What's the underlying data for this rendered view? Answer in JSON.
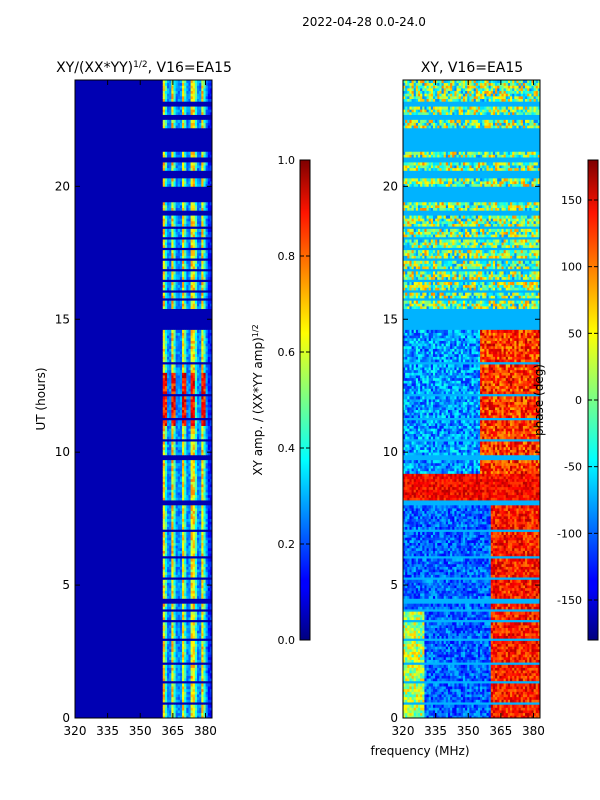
{
  "suptitle": "2022-04-28 0.0-24.0",
  "xlabel": "frequency (MHz)",
  "chart_data": [
    {
      "type": "heatmap",
      "title_main": "XY/(XX*YY)",
      "title_sup": "1/2",
      "title_rest": ", V16=EA15",
      "ylabel": "UT (hours)",
      "xticks": [
        "320",
        "335",
        "350",
        "365",
        "380"
      ],
      "xlim": [
        320,
        383
      ],
      "yticks": [
        "0",
        "5",
        "10",
        "15",
        "20"
      ],
      "ylim": [
        0,
        24
      ],
      "colorbar": {
        "label_main": "XY amp. / (XX*YY amp)",
        "label_sup": "1/2",
        "ticks": [
          "0.0",
          "0.2",
          "0.4",
          "0.6",
          "0.8",
          "1.0"
        ],
        "range": [
          0.0,
          1.0
        ],
        "colormap": "jet"
      },
      "description_values": {
        "low_band_level": 0.03,
        "high_band_channels_mhz": [
          360,
          383
        ],
        "high_band_typical_level": 0.55,
        "peak_level_hours": [
          11,
          13
        ],
        "peak_level": 0.95
      }
    },
    {
      "type": "heatmap",
      "title_main": "XY, V16=EA15",
      "ylabel": "",
      "xticks": [
        "320",
        "335",
        "350",
        "365",
        "380"
      ],
      "xlim": [
        320,
        383
      ],
      "yticks": [
        "0",
        "5",
        "10",
        "15",
        "20"
      ],
      "ylim": [
        0,
        24
      ],
      "colorbar": {
        "label_main": "phase (deg)",
        "ticks": [
          "-150",
          "-100",
          "-50",
          "0",
          "50",
          "100",
          "150"
        ],
        "range": [
          -180,
          180
        ],
        "colormap": "jet"
      }
    }
  ],
  "flagged_hours": [
    [
      23.0,
      23.15
    ],
    [
      22.5,
      22.65
    ],
    [
      21.3,
      22.2
    ],
    [
      20.9,
      21.05
    ],
    [
      20.3,
      20.55
    ],
    [
      19.4,
      20.0
    ],
    [
      18.9,
      19.05
    ],
    [
      18.4,
      18.5
    ],
    [
      18.0,
      18.1
    ],
    [
      17.6,
      17.7
    ],
    [
      17.2,
      17.3
    ],
    [
      16.8,
      16.9
    ],
    [
      16.4,
      16.5
    ],
    [
      16.0,
      16.1
    ],
    [
      15.7,
      15.8
    ],
    [
      14.6,
      15.4
    ],
    [
      13.3,
      13.38
    ],
    [
      12.1,
      12.18
    ],
    [
      11.2,
      11.28
    ],
    [
      10.4,
      10.48
    ],
    [
      9.7,
      9.85
    ],
    [
      8.0,
      8.18
    ],
    [
      7.0,
      7.06
    ],
    [
      6.0,
      6.06
    ],
    [
      5.2,
      5.26
    ],
    [
      4.35,
      4.45
    ],
    [
      4.0,
      4.1
    ],
    [
      3.6,
      3.68
    ],
    [
      2.9,
      2.96
    ],
    [
      2.0,
      2.06
    ],
    [
      1.3,
      1.36
    ],
    [
      0.5,
      0.56
    ]
  ]
}
